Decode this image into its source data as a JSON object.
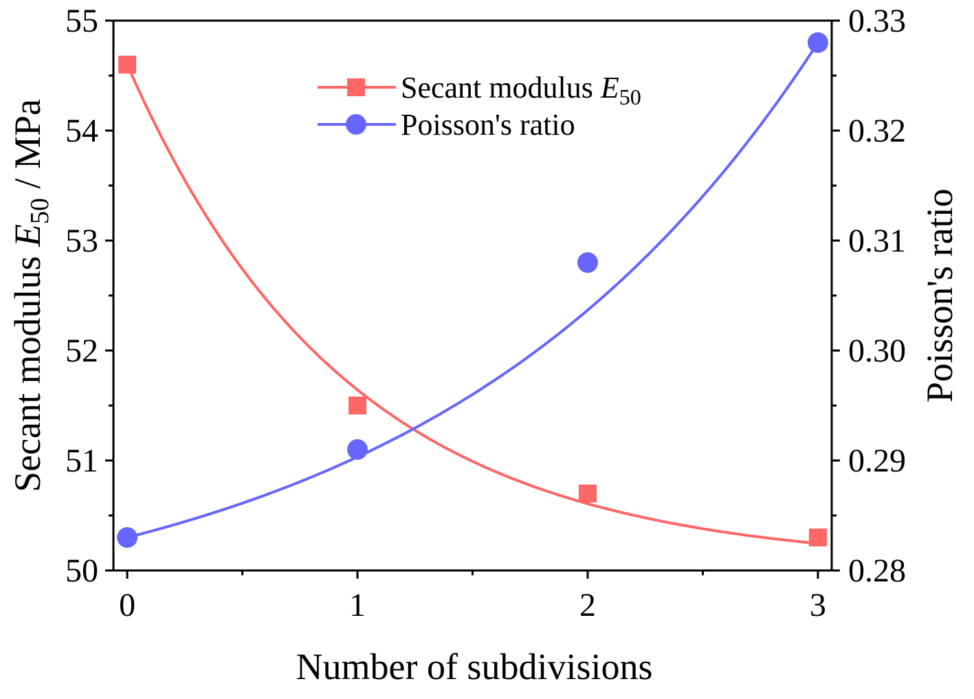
{
  "chart_data": {
    "type": "line",
    "x": [
      0,
      1,
      2,
      3
    ],
    "xlabel": "Number of subdivisions",
    "xlim": [
      -0.06,
      3.06
    ],
    "xticks": [
      0,
      1,
      2,
      3
    ],
    "xtick_labels": [
      "0",
      "1",
      "2",
      "3"
    ],
    "ylabel_left": {
      "main": "Secant modulus ",
      "var": "E",
      "sub": "50",
      "unit": " / MPa"
    },
    "ylim_left": [
      50,
      55
    ],
    "yticks_left": [
      50,
      51,
      52,
      53,
      54,
      55
    ],
    "ytick_labels_left": [
      "50",
      "51",
      "52",
      "53",
      "54",
      "55"
    ],
    "ylabel_right": "Poisson's ratio",
    "ylim_right": [
      0.28,
      0.33
    ],
    "yticks_right": [
      0.28,
      0.29,
      0.3,
      0.31,
      0.32,
      0.33
    ],
    "ytick_labels_right": [
      "0.28",
      "0.29",
      "0.30",
      "0.31",
      "0.32",
      "0.33"
    ],
    "series": [
      {
        "name": "Secant modulus E50",
        "legend": {
          "main": "Secant modulus ",
          "var": "E",
          "sub": "50"
        },
        "axis": "left",
        "marker": "square",
        "color": "#ff6666",
        "values": [
          54.6,
          51.5,
          50.7,
          50.3
        ],
        "fit": "exponential decay"
      },
      {
        "name": "Poisson's ratio",
        "legend": {
          "main": "Poisson's ratio"
        },
        "axis": "right",
        "marker": "circle",
        "color": "#6666ff",
        "values": [
          0.283,
          0.291,
          0.308,
          0.328
        ],
        "fit": "exponential growth"
      }
    ],
    "legend_position": "top-center"
  }
}
